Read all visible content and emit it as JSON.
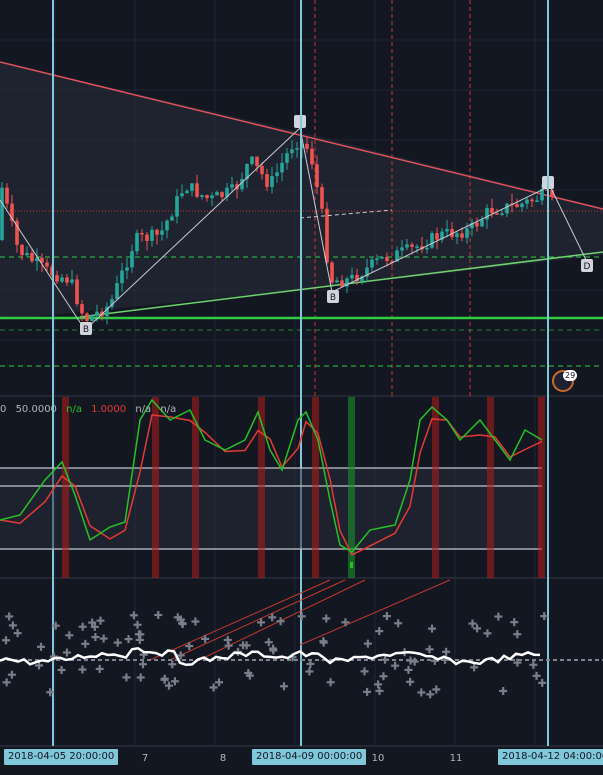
{
  "chart_data": [
    {
      "type": "candlestick",
      "x_ticks": [
        "7",
        "8",
        "10",
        "11"
      ],
      "crosshair_dates": [
        "2018-04-05 20:00:00",
        "2018-04-09 00:00:00",
        "2018-04-12 04:00:00"
      ],
      "pattern_labels": [
        "B",
        "B",
        "D"
      ],
      "colors": {
        "up": "#26a69a",
        "down": "#ef5350",
        "support": "#2ecc40",
        "resistance": "#e0525a"
      }
    },
    {
      "type": "line",
      "indicator": "stochastic",
      "legend": [
        "0",
        "50.0000",
        "n/a",
        "1.0000",
        "n/a",
        "n/a"
      ],
      "levels": [
        80,
        50,
        20
      ],
      "colors": {
        "k": "#26c226",
        "d": "#e53935"
      }
    },
    {
      "type": "scatter",
      "indicator": "oscillator"
    }
  ]
}
